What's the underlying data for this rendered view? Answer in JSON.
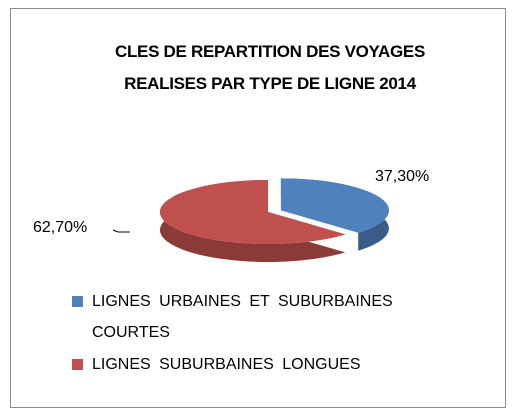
{
  "chart_data": {
    "type": "pie",
    "title": "CLES DE REPARTITION DES VOYAGES REALISES PAR TYPE DE LIGNE 2014",
    "categories": [
      "LIGNES URBAINES ET SUBURBAINES COURTES",
      "LIGNES SUBURBAINES LONGUES"
    ],
    "values": [
      37.3,
      62.7
    ],
    "value_labels": [
      "37,30%",
      "62,70%"
    ],
    "colors": [
      "#4f81bd",
      "#c0504d"
    ],
    "legend": "bottom"
  }
}
